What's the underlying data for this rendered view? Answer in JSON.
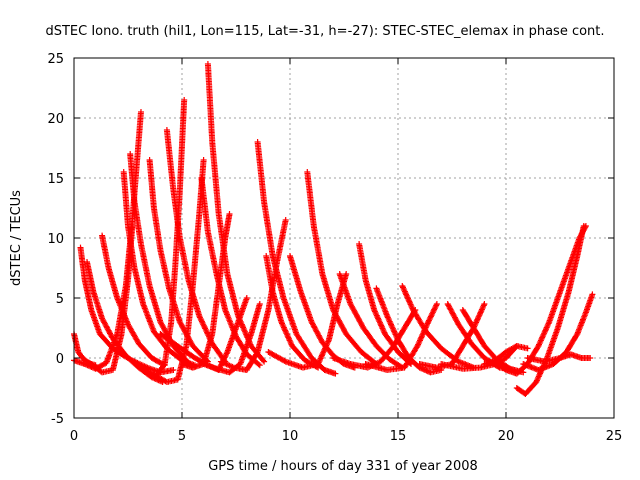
{
  "chart_data": {
    "type": "scatter",
    "title": "dSTEC Iono. truth (hil1, Lon=115, Lat=-31, h=-27): STEC-STEC_elemax in phase cont.",
    "xlabel": "GPS time / hours of day 331 of year 2008",
    "ylabel": "dSTEC  / TECUs",
    "xlim": [
      0,
      25
    ],
    "ylim": [
      -5,
      25
    ],
    "xticks": [
      0,
      5,
      10,
      15,
      20,
      25
    ],
    "yticks": [
      -5,
      0,
      5,
      10,
      15,
      20,
      25
    ],
    "grid": true,
    "marker": "+",
    "series_color": "#ff0000",
    "series": [
      {
        "x": [
          0.0,
          0.2,
          0.4,
          0.6,
          0.8,
          1.0
        ],
        "y": [
          2.0,
          0.5,
          0.0,
          -0.3,
          -0.5,
          -0.6
        ]
      },
      {
        "x": [
          0.3,
          0.5,
          0.8,
          1.2,
          1.8,
          2.3,
          2.8,
          3.4,
          4.0,
          4.6
        ],
        "y": [
          9.2,
          6.5,
          4.0,
          2.0,
          0.8,
          0.2,
          -0.3,
          -0.8,
          -1.2,
          -1.0
        ]
      },
      {
        "x": [
          0.6,
          0.9,
          1.3,
          1.8,
          2.4,
          3.0,
          3.6,
          4.1
        ],
        "y": [
          8.0,
          5.5,
          3.3,
          1.6,
          0.2,
          -0.8,
          -1.6,
          -2.0
        ]
      },
      {
        "x": [
          1.3,
          1.6,
          2.0,
          2.5,
          3.0,
          3.6,
          4.2
        ],
        "y": [
          10.2,
          7.5,
          5.0,
          2.8,
          1.2,
          0.0,
          -0.6
        ]
      },
      {
        "x": [
          0.0,
          0.5,
          1.0,
          1.5,
          2.0,
          2.4,
          2.7,
          2.9,
          3.1
        ],
        "y": [
          -0.2,
          -0.5,
          -0.9,
          -0.4,
          2.0,
          6.0,
          11.5,
          16.0,
          20.5
        ]
      },
      {
        "x": [
          0.8,
          1.3,
          1.8,
          2.2,
          2.5,
          2.7
        ],
        "y": [
          -0.5,
          -1.2,
          -1.0,
          2.0,
          6.5,
          11.0
        ]
      },
      {
        "x": [
          2.3,
          2.5,
          2.8,
          3.2,
          3.7,
          4.3,
          5.0,
          5.6
        ],
        "y": [
          15.5,
          11.0,
          7.5,
          4.5,
          2.2,
          0.8,
          -0.2,
          -0.6
        ]
      },
      {
        "x": [
          2.6,
          2.8,
          3.1,
          3.5,
          4.0,
          4.6,
          5.3
        ],
        "y": [
          17.0,
          13.0,
          9.5,
          6.0,
          3.0,
          1.0,
          -0.4
        ]
      },
      {
        "x": [
          3.5,
          3.7,
          4.0,
          4.4,
          4.9,
          5.5,
          6.2
        ],
        "y": [
          16.5,
          12.5,
          9.0,
          5.8,
          3.0,
          1.0,
          -0.3
        ]
      },
      {
        "x": [
          2.8,
          3.3,
          3.8,
          4.2,
          4.5,
          4.7,
          4.9,
          5.1
        ],
        "y": [
          -0.3,
          -1.0,
          -1.5,
          -0.5,
          3.0,
          8.0,
          14.0,
          21.5
        ]
      },
      {
        "x": [
          4.3,
          4.6,
          4.9,
          5.3,
          5.8,
          6.4,
          7.0
        ],
        "y": [
          19.0,
          14.0,
          10.0,
          6.5,
          3.5,
          1.2,
          -0.3
        ]
      },
      {
        "x": [
          3.8,
          4.3,
          4.8,
          5.2,
          5.5,
          5.8,
          6.0
        ],
        "y": [
          -1.5,
          -2.0,
          -1.8,
          1.0,
          6.0,
          12.0,
          16.5
        ]
      },
      {
        "x": [
          5.0,
          5.5,
          6.0,
          6.4,
          6.7,
          7.0,
          7.2
        ],
        "y": [
          -0.5,
          -0.8,
          -0.5,
          2.0,
          6.0,
          10.0,
          12.0
        ]
      },
      {
        "x": [
          6.2,
          6.4,
          6.7,
          7.1,
          7.6,
          8.2,
          8.8
        ],
        "y": [
          24.5,
          18.0,
          12.0,
          7.0,
          3.5,
          1.0,
          -0.3
        ]
      },
      {
        "x": [
          5.9,
          6.2,
          6.6,
          7.0,
          7.5,
          8.0,
          8.6
        ],
        "y": [
          15.0,
          10.5,
          7.0,
          4.0,
          1.8,
          0.3,
          -0.6
        ]
      },
      {
        "x": [
          4.0,
          4.8,
          5.6,
          6.2,
          6.7,
          7.1,
          7.6,
          8.0
        ],
        "y": [
          2.0,
          1.0,
          0.0,
          -0.6,
          -1.0,
          0.5,
          3.0,
          5.0
        ]
      },
      {
        "x": [
          6.0,
          6.6,
          7.2,
          7.7,
          8.2,
          8.6
        ],
        "y": [
          -0.5,
          -0.9,
          -1.2,
          -0.5,
          2.0,
          4.5
        ]
      },
      {
        "x": [
          8.5,
          8.8,
          9.2,
          9.7,
          10.3,
          11.0,
          11.6,
          12.1
        ],
        "y": [
          18.0,
          13.0,
          8.5,
          5.0,
          2.0,
          0.0,
          -1.0,
          -1.3
        ]
      },
      {
        "x": [
          6.8,
          7.4,
          8.0,
          8.5,
          9.0,
          9.4,
          9.8
        ],
        "y": [
          -0.3,
          -0.8,
          -1.0,
          0.5,
          4.0,
          8.0,
          11.5
        ]
      },
      {
        "x": [
          8.9,
          9.2,
          9.6,
          10.1,
          10.7,
          11.3
        ],
        "y": [
          8.5,
          5.5,
          3.0,
          1.0,
          -0.2,
          -0.8
        ]
      },
      {
        "x": [
          10.0,
          10.5,
          11.0,
          11.5,
          12.0,
          12.5,
          13.0
        ],
        "y": [
          8.5,
          5.5,
          3.0,
          1.3,
          0.2,
          -0.5,
          -0.8
        ]
      },
      {
        "x": [
          10.8,
          11.1,
          11.5,
          12.0,
          12.6,
          13.3,
          14.0
        ],
        "y": [
          15.5,
          11.0,
          7.0,
          4.0,
          2.0,
          0.5,
          -0.5
        ]
      },
      {
        "x": [
          9.0,
          9.8,
          10.6,
          11.3,
          11.8,
          12.2,
          12.6
        ],
        "y": [
          0.5,
          -0.3,
          -0.8,
          -0.5,
          1.5,
          4.5,
          7.0
        ]
      },
      {
        "x": [
          12.3,
          12.8,
          13.4,
          14.0,
          14.6,
          15.2
        ],
        "y": [
          7.0,
          4.5,
          2.5,
          1.0,
          -0.1,
          -0.8
        ]
      },
      {
        "x": [
          13.2,
          13.5,
          13.9,
          14.4,
          15.0,
          15.6
        ],
        "y": [
          9.5,
          6.5,
          4.0,
          2.0,
          0.5,
          -0.5
        ]
      },
      {
        "x": [
          12.0,
          12.8,
          13.6,
          14.2,
          14.8,
          15.3,
          15.8
        ],
        "y": [
          0.0,
          -0.5,
          -0.8,
          -0.3,
          1.0,
          2.5,
          4.0
        ]
      },
      {
        "x": [
          14.0,
          14.5,
          15.0,
          15.5,
          16.0,
          16.5,
          17.0
        ],
        "y": [
          5.8,
          3.5,
          1.5,
          0.0,
          -0.8,
          -1.2,
          -1.0
        ]
      },
      {
        "x": [
          13.5,
          14.5,
          15.3,
          15.9,
          16.4,
          16.8
        ],
        "y": [
          -0.5,
          -1.0,
          -0.8,
          1.0,
          3.0,
          4.5
        ]
      },
      {
        "x": [
          15.2,
          15.7,
          16.3,
          17.0,
          17.8,
          18.5
        ],
        "y": [
          6.0,
          4.0,
          2.2,
          0.8,
          -0.3,
          -0.8
        ]
      },
      {
        "x": [
          16.0,
          16.8,
          17.5,
          18.0,
          18.5,
          19.0
        ],
        "y": [
          -0.5,
          -0.8,
          -0.5,
          1.0,
          2.5,
          4.5
        ]
      },
      {
        "x": [
          17.3,
          17.8,
          18.4,
          19.0,
          19.7,
          20.4
        ],
        "y": [
          4.5,
          2.8,
          1.2,
          0.0,
          -0.8,
          -1.0
        ]
      },
      {
        "x": [
          18.0,
          18.5,
          19.0,
          19.6,
          20.2,
          20.8
        ],
        "y": [
          4.0,
          2.5,
          1.0,
          -0.2,
          -0.9,
          -1.2
        ]
      },
      {
        "x": [
          17.0,
          18.0,
          18.8,
          19.5,
          20.0,
          20.5
        ],
        "y": [
          -0.5,
          -0.9,
          -0.8,
          -0.5,
          0.0,
          1.0
        ]
      },
      {
        "x": [
          19.5,
          20.0,
          20.5,
          21.0,
          21.5,
          22.0,
          22.5,
          23.0,
          23.4,
          23.7
        ],
        "y": [
          -0.3,
          -1.0,
          -1.3,
          -0.5,
          1.0,
          3.0,
          5.5,
          8.0,
          10.0,
          11.0
        ]
      },
      {
        "x": [
          20.5,
          20.9,
          21.4,
          21.9,
          22.4,
          22.9,
          23.3,
          23.6
        ],
        "y": [
          -2.5,
          -3.0,
          -2.0,
          0.0,
          2.5,
          5.5,
          8.5,
          11.0
        ]
      },
      {
        "x": [
          20.8,
          21.5,
          22.2,
          22.8,
          23.3,
          23.7,
          24.0
        ],
        "y": [
          -0.5,
          -1.0,
          -0.5,
          0.5,
          2.0,
          3.8,
          5.3
        ]
      },
      {
        "x": [
          21.0,
          21.8,
          22.5,
          23.0,
          23.5,
          23.9
        ],
        "y": [
          0.0,
          -0.3,
          0.0,
          0.3,
          0.0,
          0.0
        ]
      },
      {
        "x": [
          19.0,
          19.5,
          20.0,
          20.5,
          21.0
        ],
        "y": [
          -0.5,
          -0.2,
          0.5,
          1.0,
          0.8
        ]
      }
    ]
  }
}
